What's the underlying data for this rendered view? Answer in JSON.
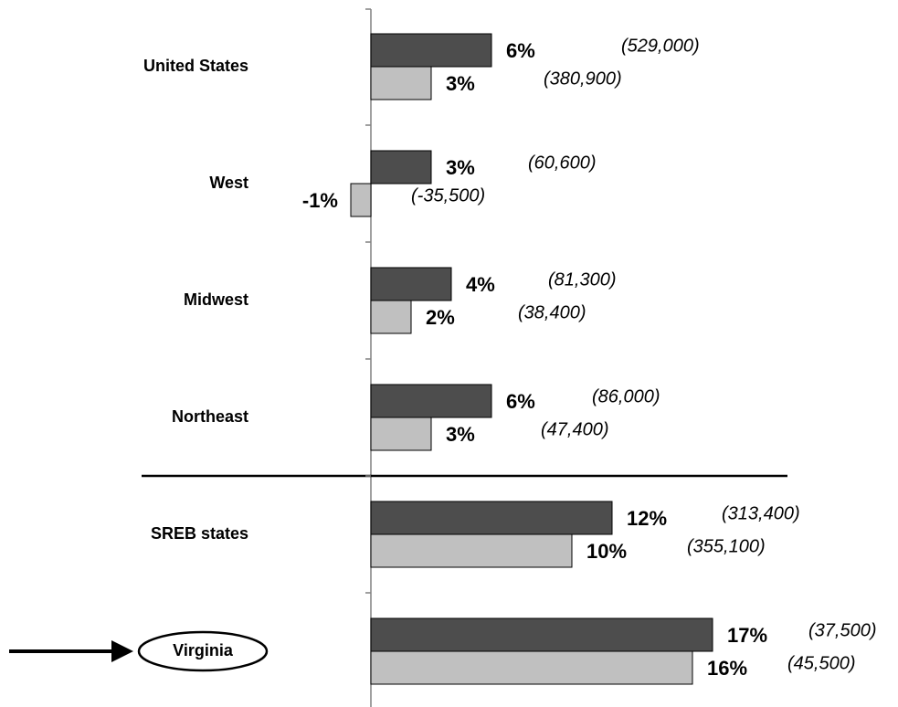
{
  "chart_data": {
    "type": "bar",
    "orientation": "horizontal",
    "categories": [
      "United States",
      "West",
      "Midwest",
      "Northeast",
      "SREB states",
      "Virginia"
    ],
    "series": [
      {
        "color": "#4d4d4d",
        "values": [
          6,
          3,
          4,
          6,
          12,
          17
        ],
        "value_labels": [
          "6%",
          "3%",
          "4%",
          "6%",
          "12%",
          "17%"
        ],
        "annotations": [
          "(529,000)",
          "(60,600)",
          "(81,300)",
          "(86,000)",
          "(313,400)",
          "(37,500)"
        ]
      },
      {
        "color": "#c0c0c0",
        "values": [
          3,
          -1,
          2,
          3,
          10,
          16
        ],
        "value_labels": [
          "3%",
          "-1%",
          "2%",
          "3%",
          "10%",
          "16%"
        ],
        "annotations": [
          "(380,900)",
          "(-35,500)",
          "(38,400)",
          "(47,400)",
          "(355,100)",
          "(45,500)"
        ]
      }
    ]
  }
}
